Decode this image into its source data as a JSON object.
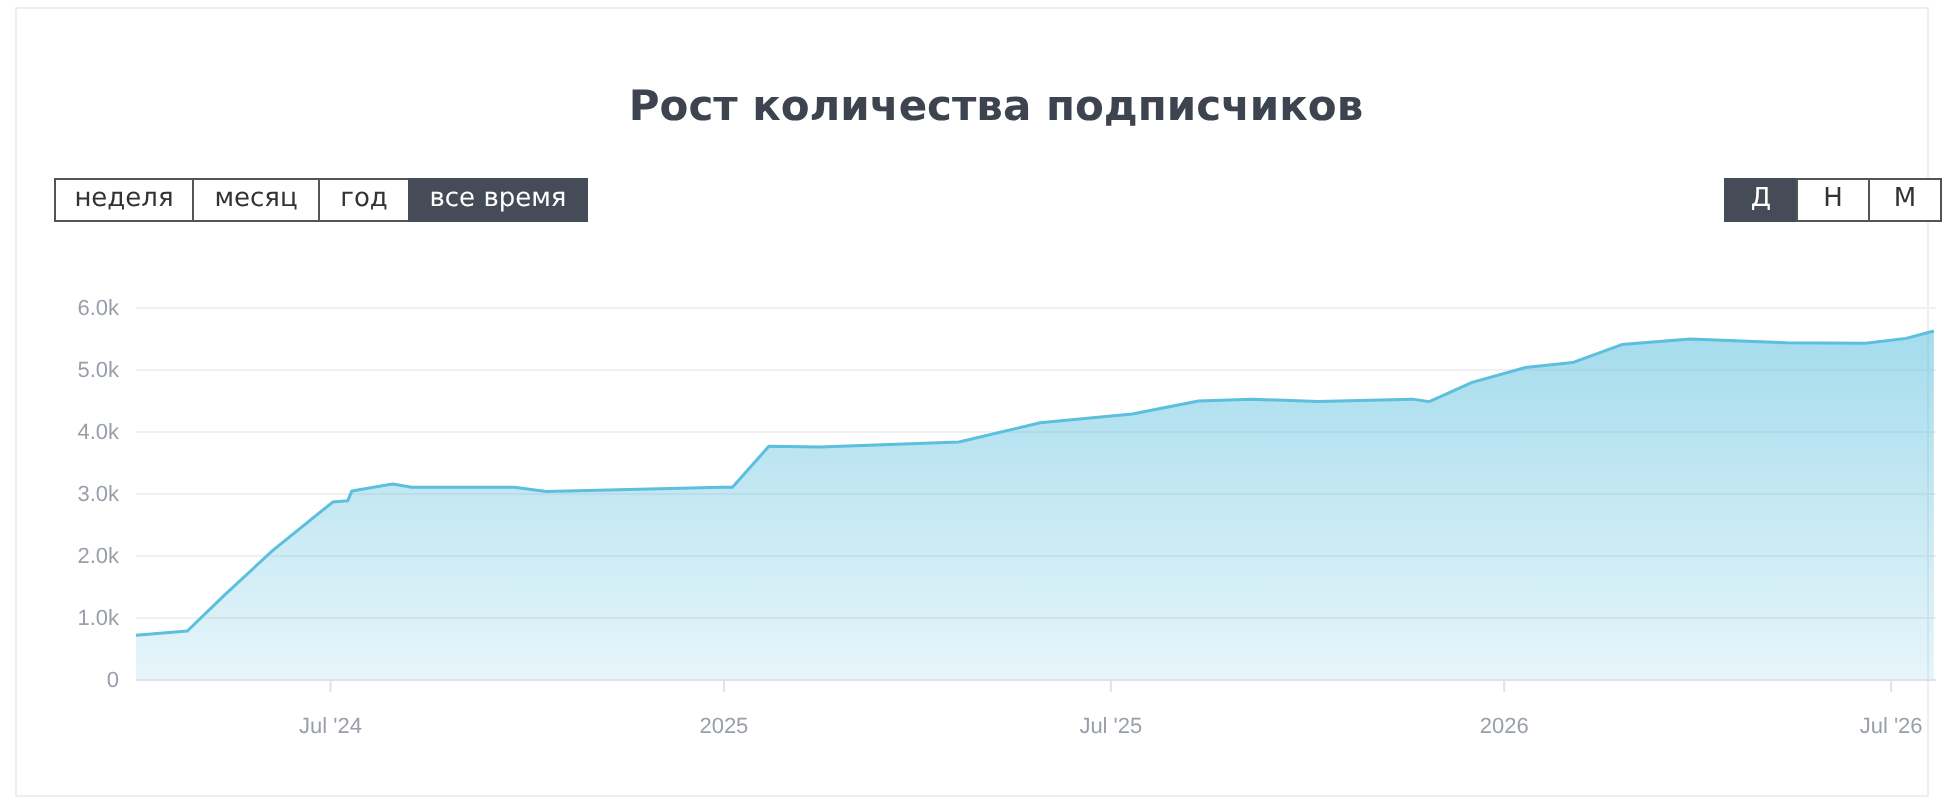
{
  "chart_data": {
    "type": "area",
    "title": "Рост количества подписчиков",
    "annotations": [
      "неделя",
      "месяц",
      "год",
      "все время",
      "Д",
      "Н",
      "М"
    ],
    "x": [
      "2024-04-01",
      "2024-04-25",
      "2024-05-13",
      "2024-06-04",
      "2024-07-02",
      "2024-07-09",
      "2024-07-11",
      "2024-07-30",
      "2024-08-08",
      "2024-09-25",
      "2024-10-10",
      "2024-12-31",
      "2025-01-05",
      "2025-01-22",
      "2025-02-15",
      "2025-04-21",
      "2025-05-29",
      "2025-07-11",
      "2025-08-11",
      "2025-09-05",
      "2025-10-06",
      "2025-11-19",
      "2025-11-27",
      "2025-12-17",
      "2026-01-11",
      "2026-02-02",
      "2026-02-25",
      "2026-03-29",
      "2026-05-13",
      "2026-06-19",
      "2026-07-08",
      "2026-07-21"
    ],
    "series": [
      {
        "color": "#5bbfdd",
        "values": [
          720,
          790,
          1390,
          2090,
          2870,
          2890,
          3050,
          3160,
          3110,
          3110,
          3040,
          3110,
          3110,
          3770,
          3760,
          3840,
          4150,
          4290,
          4500,
          4530,
          4490,
          4530,
          4490,
          4800,
          5040,
          5120,
          5410,
          5500,
          5440,
          5430,
          5510,
          5630
        ]
      }
    ],
    "xlim": [
      "2024-04-01",
      "2026-07-22"
    ],
    "xticks": [
      {
        "value": "2024-07-01",
        "label": "Jul '24"
      },
      {
        "value": "2025-01-01",
        "label": "2025"
      },
      {
        "value": "2025-07-01",
        "label": "Jul '25"
      },
      {
        "value": "2026-01-01",
        "label": "2026"
      },
      {
        "value": "2026-07-01",
        "label": "Jul '26"
      }
    ],
    "ylim": [
      0,
      6000
    ],
    "yticks": [
      0,
      {
        "value": 1000,
        "label": "1.0k"
      },
      {
        "value": 2000,
        "label": "2.0k"
      },
      {
        "value": 3000,
        "label": "3.0k"
      },
      {
        "value": 4000,
        "label": "4.0k"
      },
      {
        "value": 5000,
        "label": "5.0k"
      },
      {
        "value": 6000,
        "label": "6.0k"
      }
    ],
    "grid": "y",
    "marker": "none"
  }
}
